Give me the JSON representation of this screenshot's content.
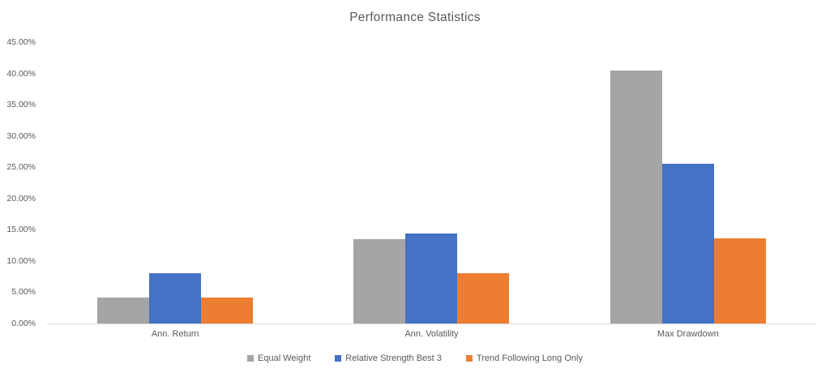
{
  "chart_data": {
    "type": "bar",
    "title": "Performance Statistics",
    "categories": [
      "Ann. Return",
      "Ann. Volatility",
      "Max Drawdown"
    ],
    "series": [
      {
        "name": "Equal Weight",
        "color": "#a5a5a5",
        "values": [
          4.1,
          13.5,
          40.5
        ]
      },
      {
        "name": "Relative Strength Best 3",
        "color": "#4472c4",
        "values": [
          8.0,
          14.4,
          25.6
        ]
      },
      {
        "name": "Trend Following Long Only",
        "color": "#ed7d31",
        "values": [
          4.2,
          8.1,
          13.6
        ]
      }
    ],
    "xlabel": "",
    "ylabel": "",
    "ylim": [
      0,
      45
    ],
    "y_ticks": [
      {
        "value": 0,
        "label": "0.00%"
      },
      {
        "value": 5,
        "label": "5.00%"
      },
      {
        "value": 10,
        "label": "10.00%"
      },
      {
        "value": 15,
        "label": "15.00%"
      },
      {
        "value": 20,
        "label": "20.00%"
      },
      {
        "value": 25,
        "label": "25.00%"
      },
      {
        "value": 30,
        "label": "30.00%"
      },
      {
        "value": 35,
        "label": "35.00%"
      },
      {
        "value": 40,
        "label": "40.00%"
      },
      {
        "value": 45,
        "label": "45.00%"
      }
    ],
    "grid": false,
    "legend_position": "bottom",
    "axis_line_color": "#d9d9d9",
    "text_color": "#595959"
  }
}
